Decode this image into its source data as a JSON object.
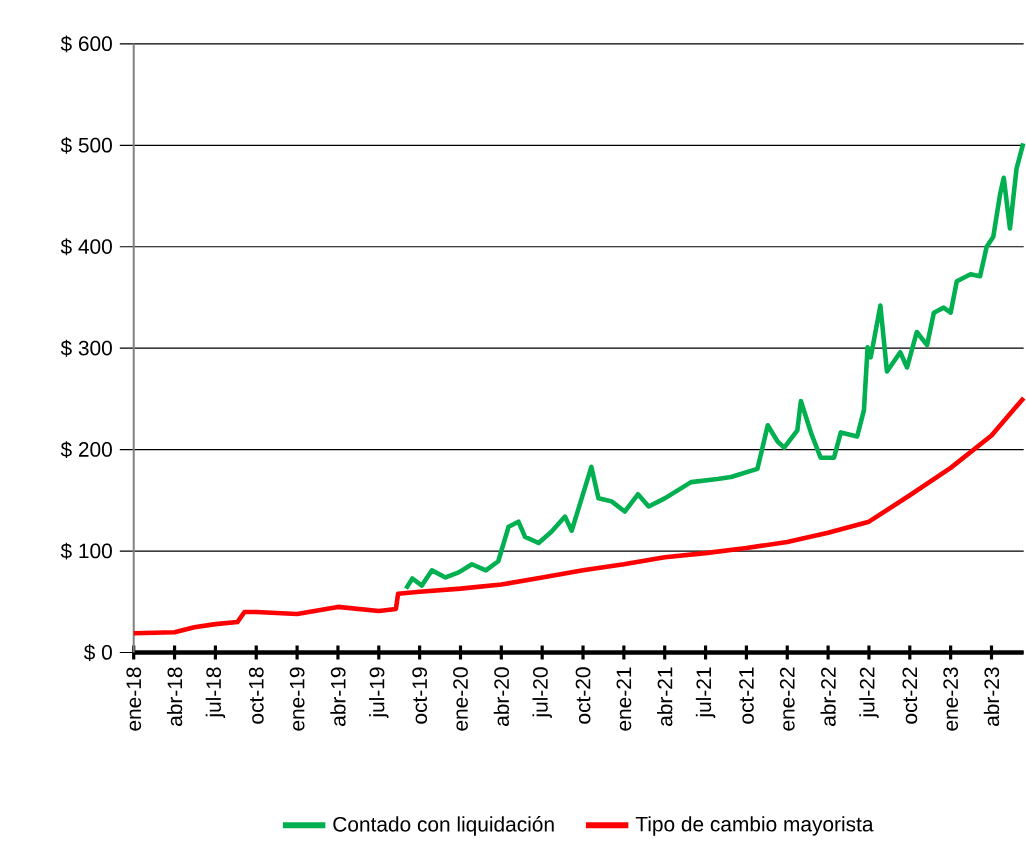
{
  "chart_data": {
    "type": "line",
    "xlim": [
      "2018-01-01",
      "2023-06-12"
    ],
    "xticks": [
      {
        "value": "2018-01-01",
        "label": "ene-18"
      },
      {
        "value": "2018-04-01",
        "label": "abr-18"
      },
      {
        "value": "2018-07-01",
        "label": "jul-18"
      },
      {
        "value": "2018-10-01",
        "label": "oct-18"
      },
      {
        "value": "2019-01-01",
        "label": "ene-19"
      },
      {
        "value": "2019-04-01",
        "label": "abr-19"
      },
      {
        "value": "2019-07-01",
        "label": "jul-19"
      },
      {
        "value": "2019-10-01",
        "label": "oct-19"
      },
      {
        "value": "2020-01-01",
        "label": "ene-20"
      },
      {
        "value": "2020-04-01",
        "label": "abr-20"
      },
      {
        "value": "2020-07-01",
        "label": "jul-20"
      },
      {
        "value": "2020-10-01",
        "label": "oct-20"
      },
      {
        "value": "2021-01-01",
        "label": "ene-21"
      },
      {
        "value": "2021-04-01",
        "label": "abr-21"
      },
      {
        "value": "2021-07-01",
        "label": "jul-21"
      },
      {
        "value": "2021-10-01",
        "label": "oct-21"
      },
      {
        "value": "2022-01-01",
        "label": "ene-22"
      },
      {
        "value": "2022-04-01",
        "label": "abr-22"
      },
      {
        "value": "2022-07-01",
        "label": "jul-22"
      },
      {
        "value": "2022-10-01",
        "label": "oct-22"
      },
      {
        "value": "2023-01-01",
        "label": "ene-23"
      },
      {
        "value": "2023-04-01",
        "label": "abr-23"
      }
    ],
    "ylim": [
      0,
      600
    ],
    "yticks": [
      {
        "value": 0,
        "label": "$ 0"
      },
      {
        "value": 100,
        "label": "$ 100"
      },
      {
        "value": 200,
        "label": "$ 200"
      },
      {
        "value": 300,
        "label": "$ 300"
      },
      {
        "value": 400,
        "label": "$ 400"
      },
      {
        "value": 500,
        "label": "$ 500"
      },
      {
        "value": 600,
        "label": "$ 600"
      }
    ],
    "grid": "y",
    "legend": "bottom",
    "marker": "none",
    "line_style": "solid",
    "series": [
      {
        "name": "Contado con liquidación",
        "color": "#00b050",
        "x": [
          "2019-09-01",
          "2019-09-15",
          "2019-10-06",
          "2019-10-29",
          "2019-11-28",
          "2019-12-28",
          "2020-01-27",
          "2020-02-26",
          "2020-03-25",
          "2020-04-17",
          "2020-05-09",
          "2020-05-24",
          "2020-06-23",
          "2020-07-22",
          "2020-08-22",
          "2020-09-06",
          "2020-09-28",
          "2020-10-20",
          "2020-11-05",
          "2020-12-04",
          "2021-01-03",
          "2021-02-02",
          "2021-02-24",
          "2021-04-01",
          "2021-05-30",
          "2021-07-28",
          "2021-08-28",
          "2021-10-26",
          "2021-11-18",
          "2021-12-10",
          "2021-12-25",
          "2022-01-24",
          "2022-02-01",
          "2022-02-23",
          "2022-03-15",
          "2022-04-14",
          "2022-04-29",
          "2022-06-05",
          "2022-06-20",
          "2022-06-28",
          "2022-07-05",
          "2022-07-27",
          "2022-08-11",
          "2022-09-10",
          "2022-09-25",
          "2022-10-17",
          "2022-11-09",
          "2022-11-24",
          "2022-12-16",
          "2023-01-01",
          "2023-01-15",
          "2023-02-14",
          "2023-03-06",
          "2023-03-21",
          "2023-04-05",
          "2023-04-20",
          "2023-04-28",
          "2023-05-12",
          "2023-05-27",
          "2023-06-11"
        ],
        "values": [
          63,
          73,
          66,
          81,
          74,
          79,
          87,
          81,
          90,
          124,
          129,
          114,
          108,
          119,
          134,
          120,
          152,
          183,
          152,
          149,
          139,
          156,
          144,
          152,
          168,
          171,
          173,
          181,
          224,
          208,
          202,
          219,
          248,
          215,
          192,
          192,
          217,
          213,
          239,
          301,
          291,
          342,
          277,
          296,
          281,
          316,
          303,
          335,
          340,
          335,
          366,
          373,
          371,
          400,
          410,
          452,
          468,
          418,
          477,
          502
        ]
      },
      {
        "name": "Tipo de cambio mayorista",
        "color": "#ff0000",
        "x": [
          "2018-01-01",
          "2018-04-01",
          "2018-05-15",
          "2018-07-01",
          "2018-08-20",
          "2018-09-05",
          "2018-10-01",
          "2019-01-01",
          "2019-04-01",
          "2019-07-01",
          "2019-08-09",
          "2019-08-14",
          "2019-10-01",
          "2020-01-01",
          "2020-04-01",
          "2020-07-01",
          "2020-10-01",
          "2021-01-01",
          "2021-04-01",
          "2021-07-01",
          "2021-10-01",
          "2022-01-01",
          "2022-04-01",
          "2022-07-01",
          "2022-10-01",
          "2023-01-01",
          "2023-04-01",
          "2023-06-12"
        ],
        "values": [
          19,
          20,
          25,
          28,
          30,
          40,
          40,
          38,
          45,
          41,
          43,
          58,
          60,
          63,
          67,
          74,
          81,
          87,
          94,
          98,
          103,
          109,
          118,
          129,
          155,
          182,
          214,
          251
        ]
      }
    ]
  }
}
